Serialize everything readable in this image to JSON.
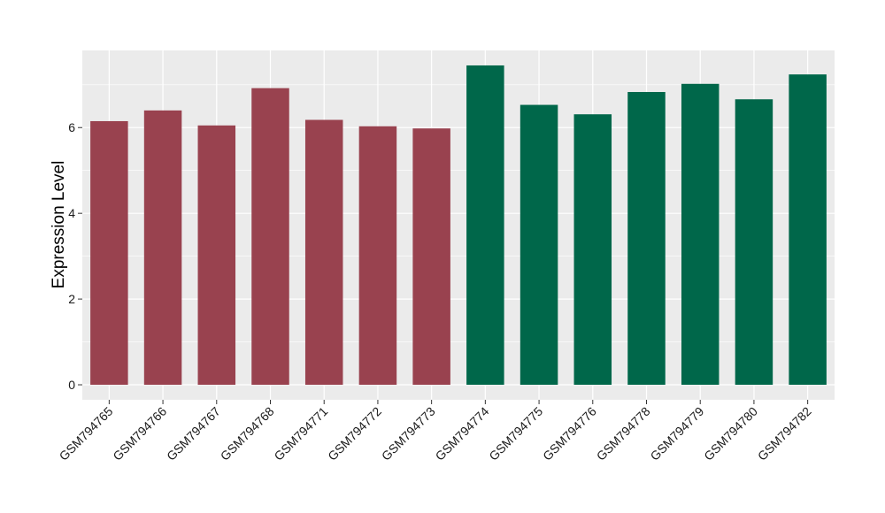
{
  "chart_data": {
    "type": "bar",
    "title": "",
    "xlabel": "",
    "ylabel": "Expression Level",
    "ylim": [
      -0.35,
      7.8
    ],
    "yticks": [
      0,
      2,
      4,
      6
    ],
    "grid": true,
    "legend": "none",
    "background": "#ebebeb",
    "gridline_color": "#ffffff",
    "categories": [
      "GSM794765",
      "GSM794766",
      "GSM794767",
      "GSM794768",
      "GSM794771",
      "GSM794772",
      "GSM794773",
      "GSM794774",
      "GSM794775",
      "GSM794776",
      "GSM794778",
      "GSM794779",
      "GSM794780",
      "GSM794782"
    ],
    "values": [
      6.15,
      6.4,
      6.05,
      6.92,
      6.18,
      6.03,
      5.98,
      7.45,
      6.53,
      6.31,
      6.83,
      7.02,
      6.66,
      7.24
    ],
    "bar_colors": [
      "#99424f",
      "#99424f",
      "#99424f",
      "#99424f",
      "#99424f",
      "#99424f",
      "#99424f",
      "#00674a",
      "#00674a",
      "#00674a",
      "#00674a",
      "#00674a",
      "#00674a",
      "#00674a"
    ]
  }
}
